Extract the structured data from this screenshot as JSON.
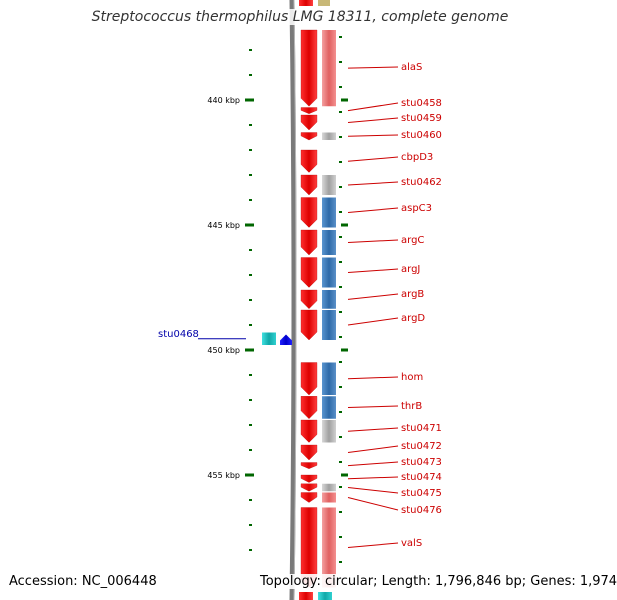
{
  "title": "Streptococcus thermophilus LMG 18311, complete genome",
  "footer": {
    "accession": "Accession: NC_006448",
    "topology": "Topology: circular; Length: 1,796,846 bp; Genes: 1,974"
  },
  "colors": {
    "cds_forward": "#ff0000",
    "cds_reverse": "#0000ff",
    "cog_metabolism": "#4a86c0",
    "cog_info": "#f08080",
    "cog_unknown": "#c0c0c0",
    "rna": "#20c0c0",
    "label_red": "#cc0000",
    "label_blue": "#0000aa",
    "tick_green": "#006600",
    "backbone": "#808080"
  },
  "scale": {
    "unit": "kbp",
    "ticks": [
      {
        "value": 440,
        "label": "440 kbp"
      },
      {
        "value": 445,
        "label": "445 kbp"
      },
      {
        "value": 450,
        "label": "450 kbp"
      },
      {
        "value": 455,
        "label": "455 kbp"
      }
    ]
  },
  "genes": [
    {
      "name": "alaS",
      "start_kbp": 437.2,
      "end_kbp": 440.25,
      "strand": "+",
      "cog": "cog_info"
    },
    {
      "name": "stu0458",
      "start_kbp": 440.3,
      "end_kbp": 440.55,
      "strand": "+",
      "cog": "none"
    },
    {
      "name": "stu0459",
      "start_kbp": 440.6,
      "end_kbp": 441.2,
      "strand": "+",
      "cog": "none"
    },
    {
      "name": "stu0460",
      "start_kbp": 441.3,
      "end_kbp": 441.6,
      "strand": "+",
      "cog": "cog_unknown"
    },
    {
      "name": "cbpD3",
      "start_kbp": 442.0,
      "end_kbp": 442.9,
      "strand": "+",
      "cog": "none"
    },
    {
      "name": "stu0462",
      "start_kbp": 443.0,
      "end_kbp": 443.8,
      "strand": "+",
      "cog": "cog_unknown"
    },
    {
      "name": "aspC3",
      "start_kbp": 443.9,
      "end_kbp": 445.1,
      "strand": "+",
      "cog": "cog_metabolism"
    },
    {
      "name": "argC",
      "start_kbp": 445.2,
      "end_kbp": 446.2,
      "strand": "+",
      "cog": "cog_metabolism"
    },
    {
      "name": "argJ",
      "start_kbp": 446.3,
      "end_kbp": 447.5,
      "strand": "+",
      "cog": "cog_metabolism"
    },
    {
      "name": "argB",
      "start_kbp": 447.6,
      "end_kbp": 448.35,
      "strand": "+",
      "cog": "cog_metabolism"
    },
    {
      "name": "argD",
      "start_kbp": 448.4,
      "end_kbp": 449.6,
      "strand": "+",
      "cog": "cog_metabolism"
    },
    {
      "name": "stu0468",
      "start_kbp": 449.3,
      "end_kbp": 449.8,
      "strand": "rna",
      "cog": "none"
    },
    {
      "name": "hom",
      "start_kbp": 450.5,
      "end_kbp": 451.8,
      "strand": "+",
      "cog": "cog_metabolism"
    },
    {
      "name": "thrB",
      "start_kbp": 451.85,
      "end_kbp": 452.75,
      "strand": "+",
      "cog": "cog_metabolism"
    },
    {
      "name": "stu0471",
      "start_kbp": 452.8,
      "end_kbp": 453.7,
      "strand": "+",
      "cog": "cog_unknown"
    },
    {
      "name": "stu0472",
      "start_kbp": 453.8,
      "end_kbp": 454.4,
      "strand": "+",
      "cog": "none"
    },
    {
      "name": "stu0473",
      "start_kbp": 454.5,
      "end_kbp": 454.75,
      "strand": "+",
      "cog": "none"
    },
    {
      "name": "stu0474",
      "start_kbp": 455.0,
      "end_kbp": 455.3,
      "strand": "+",
      "cog": "none"
    },
    {
      "name": "stu0475",
      "start_kbp": 455.35,
      "end_kbp": 455.65,
      "strand": "+",
      "cog": "cog_unknown"
    },
    {
      "name": "stu0476",
      "start_kbp": 455.7,
      "end_kbp": 456.1,
      "strand": "+",
      "cog": "cog_info"
    },
    {
      "name": "valS",
      "start_kbp": 456.3,
      "end_kbp": 459.5,
      "strand": "+",
      "cog": "cog_info"
    }
  ]
}
